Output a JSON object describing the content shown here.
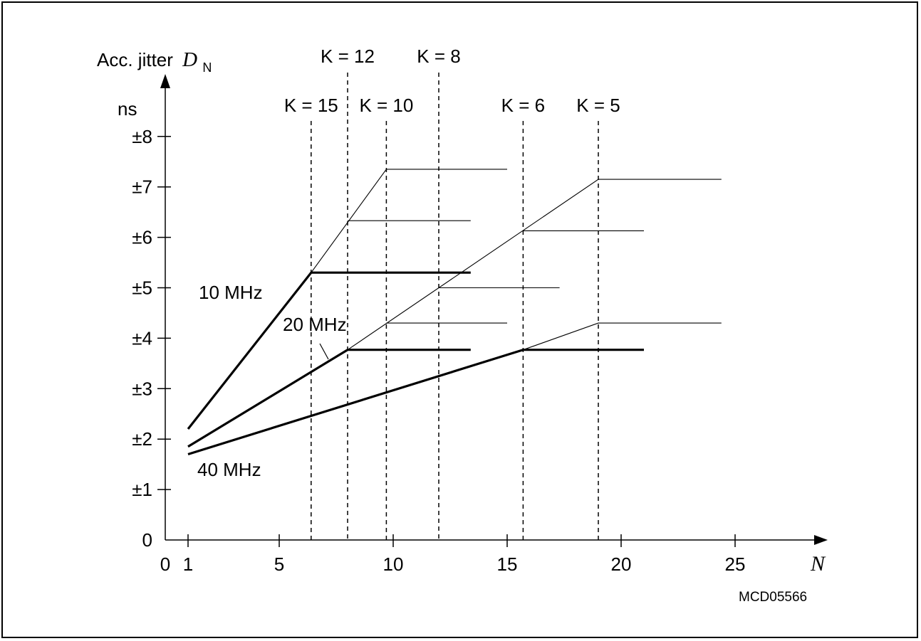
{
  "chart_data": {
    "type": "line",
    "ylabel": "Acc. jitter",
    "ylabel_symbol": "D",
    "ylabel_subscript": "N",
    "yunit": "ns",
    "xlabel": "N",
    "figure_id": "MCD05566",
    "xlim": [
      0,
      28
    ],
    "ylim": [
      0,
      8.5
    ],
    "x_ticks": [
      0,
      1,
      5,
      10,
      15,
      20,
      25
    ],
    "x_tick_labels": [
      "0",
      "1",
      "5",
      "10",
      "15",
      "20",
      "25"
    ],
    "y_ticks": [
      0,
      1,
      2,
      3,
      4,
      5,
      6,
      7,
      8
    ],
    "y_tick_labels": [
      "0",
      "±1",
      "±2",
      "±3",
      "±4",
      "±5",
      "±6",
      "±7",
      "±8"
    ],
    "vlines": [
      {
        "label": "K = 15",
        "x": 6.4
      },
      {
        "label": "K = 12",
        "x": 8.0
      },
      {
        "label": "K = 10",
        "x": 9.7
      },
      {
        "label": "K = 8",
        "x": 12.0
      },
      {
        "label": "K = 6",
        "x": 15.7
      },
      {
        "label": "K = 5",
        "x": 19.0
      }
    ],
    "series": [
      {
        "name": "10 MHz",
        "weight": "bold",
        "x": [
          1,
          6.4,
          13.4
        ],
        "y": [
          2.2,
          5.3,
          5.3
        ]
      },
      {
        "name": "20 MHz",
        "weight": "bold",
        "x": [
          1,
          8.0,
          13.4
        ],
        "y": [
          1.85,
          3.77,
          3.77
        ]
      },
      {
        "name": "40 MHz",
        "weight": "bold",
        "x": [
          1,
          15.7,
          21.0
        ],
        "y": [
          1.7,
          3.77,
          3.77
        ]
      },
      {
        "name": "",
        "weight": "thin",
        "x": [
          6.4,
          9.7,
          15.0
        ],
        "y": [
          5.3,
          7.35,
          7.35
        ]
      },
      {
        "name": "",
        "weight": "thin",
        "x": [
          8.0,
          13.4
        ],
        "y": [
          6.33,
          6.33
        ]
      },
      {
        "name": "",
        "weight": "thin",
        "x": [
          8.0,
          19.0,
          24.4
        ],
        "y": [
          3.77,
          7.15,
          7.15
        ]
      },
      {
        "name": "",
        "weight": "thin",
        "x": [
          15.7,
          21.0
        ],
        "y": [
          6.13,
          6.13
        ]
      },
      {
        "name": "",
        "weight": "thin",
        "x": [
          12.0,
          17.3
        ],
        "y": [
          5.0,
          5.0
        ]
      },
      {
        "name": "",
        "weight": "thin",
        "x": [
          9.7,
          15.0
        ],
        "y": [
          4.3,
          4.3
        ]
      },
      {
        "name": "",
        "weight": "thin",
        "x": [
          15.7,
          19.0,
          24.4
        ],
        "y": [
          3.77,
          4.3,
          4.3
        ]
      }
    ],
    "series_labels": [
      {
        "text": "10 MHz",
        "series": 0
      },
      {
        "text": "20 MHz",
        "series": 1
      },
      {
        "text": "40 MHz",
        "series": 2
      }
    ]
  }
}
